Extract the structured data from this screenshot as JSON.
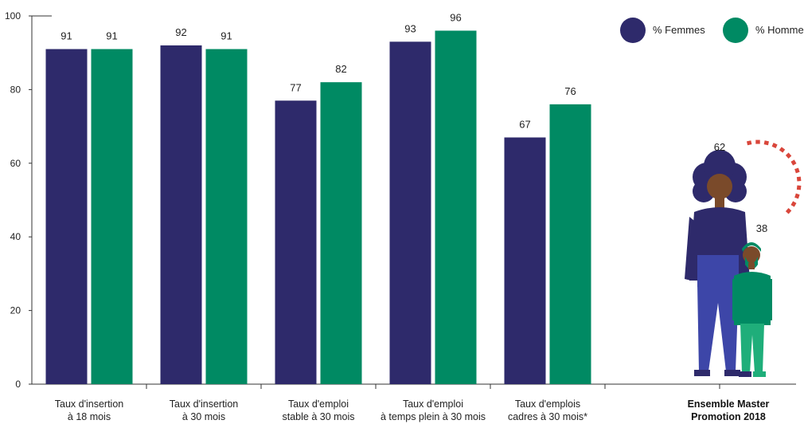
{
  "chart_data": {
    "type": "bar",
    "categories": [
      [
        "Taux d'insertion",
        "à 18 mois"
      ],
      [
        "Taux d'insertion",
        "à 30 mois"
      ],
      [
        "Taux d'emploi",
        "stable à 30 mois"
      ],
      [
        "Taux d'emploi",
        "à temps plein à 30 mois"
      ],
      [
        "Taux d'emplois",
        "cadres à 30 mois*"
      ]
    ],
    "series": [
      {
        "name": "% Femmes",
        "color": "#2e2a6b",
        "values": [
          91,
          92,
          77,
          93,
          67
        ]
      },
      {
        "name": "% Hommes",
        "color": "#008a63",
        "values": [
          91,
          91,
          82,
          96,
          76
        ]
      }
    ],
    "yticks": [
      0,
      20,
      40,
      60,
      80,
      100
    ],
    "ylim": [
      0,
      100
    ],
    "legend_position": "top-right",
    "summary": {
      "title_lines": [
        "Ensemble Master",
        "Promotion 2018"
      ],
      "women_value": "62",
      "men_value": "38",
      "accent_color": "#d9463b"
    }
  }
}
